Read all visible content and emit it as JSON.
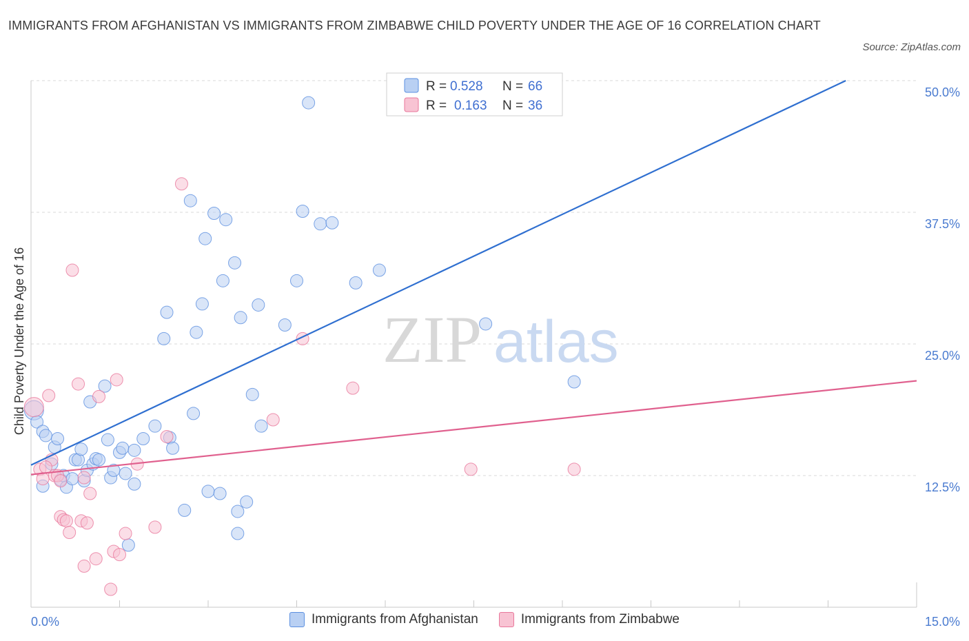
{
  "title": "IMMIGRANTS FROM AFGHANISTAN VS IMMIGRANTS FROM ZIMBABWE CHILD POVERTY UNDER THE AGE OF 16 CORRELATION CHART",
  "source": "Source: ZipAtlas.com",
  "watermark": {
    "zip": "ZIP",
    "atlas": "atlas"
  },
  "chart_data": {
    "type": "scatter",
    "xlabel": "",
    "ylabel": "Child Poverty Under the Age of 16",
    "xlim": [
      0,
      15
    ],
    "ylim": [
      0,
      50
    ],
    "x_tick_labels": [
      "0.0%",
      "15.0%"
    ],
    "y_ticks": [
      12.5,
      25.0,
      37.5,
      50.0
    ],
    "y_tick_labels": [
      "12.5%",
      "25.0%",
      "37.5%",
      "50.0%"
    ],
    "grid": "horizontal dashed",
    "legend_placement": "top-center",
    "series": [
      {
        "name": "Immigrants from Afghanistan",
        "color": "#5b8fe0",
        "fill": "#b9d0f3",
        "R": "0.528",
        "N": "66",
        "trend": {
          "x": [
            0,
            13.8
          ],
          "y": [
            13.5,
            50.0
          ]
        },
        "points": [
          [
            0.05,
            18.7
          ],
          [
            0.1,
            17.6
          ],
          [
            0.2,
            16.7
          ],
          [
            0.25,
            16.3
          ],
          [
            0.35,
            13.6
          ],
          [
            0.4,
            15.2
          ],
          [
            0.45,
            16.0
          ],
          [
            0.5,
            12.1
          ],
          [
            0.2,
            11.5
          ],
          [
            0.55,
            12.5
          ],
          [
            0.6,
            11.4
          ],
          [
            0.7,
            12.2
          ],
          [
            0.75,
            14.0
          ],
          [
            0.8,
            14.0
          ],
          [
            0.85,
            15.0
          ],
          [
            0.9,
            12.0
          ],
          [
            0.95,
            13.0
          ],
          [
            1.0,
            19.5
          ],
          [
            1.05,
            13.6
          ],
          [
            1.1,
            14.1
          ],
          [
            1.15,
            14.0
          ],
          [
            1.25,
            21.0
          ],
          [
            1.3,
            15.9
          ],
          [
            1.35,
            12.3
          ],
          [
            1.4,
            13.0
          ],
          [
            1.5,
            14.7
          ],
          [
            1.55,
            15.1
          ],
          [
            1.6,
            12.7
          ],
          [
            1.65,
            5.9
          ],
          [
            1.75,
            14.9
          ],
          [
            1.75,
            11.7
          ],
          [
            1.9,
            16.0
          ],
          [
            2.1,
            17.2
          ],
          [
            2.25,
            25.5
          ],
          [
            2.3,
            28.0
          ],
          [
            2.35,
            16.1
          ],
          [
            2.4,
            15.1
          ],
          [
            2.6,
            9.2
          ],
          [
            2.7,
            38.6
          ],
          [
            2.75,
            18.4
          ],
          [
            2.8,
            26.1
          ],
          [
            2.9,
            28.8
          ],
          [
            2.95,
            35.0
          ],
          [
            3.0,
            11.0
          ],
          [
            3.1,
            37.4
          ],
          [
            3.2,
            10.8
          ],
          [
            3.25,
            31.0
          ],
          [
            3.3,
            36.8
          ],
          [
            3.45,
            32.7
          ],
          [
            3.5,
            9.1
          ],
          [
            3.5,
            7.0
          ],
          [
            3.55,
            27.5
          ],
          [
            3.65,
            10.0
          ],
          [
            3.75,
            20.2
          ],
          [
            3.85,
            28.7
          ],
          [
            3.9,
            17.2
          ],
          [
            4.3,
            26.8
          ],
          [
            4.5,
            31.0
          ],
          [
            4.6,
            37.6
          ],
          [
            4.7,
            47.9
          ],
          [
            4.9,
            36.4
          ],
          [
            5.1,
            36.5
          ],
          [
            5.5,
            30.8
          ],
          [
            5.9,
            32.0
          ],
          [
            7.7,
            26.9
          ],
          [
            9.2,
            21.4
          ]
        ]
      },
      {
        "name": "Immigrants from Zimbabwe",
        "color": "#e8779b",
        "fill": "#f8c3d3",
        "R": "0.163",
        "N": "36",
        "trend": {
          "x": [
            0,
            15
          ],
          "y": [
            12.6,
            21.5
          ]
        },
        "points": [
          [
            0.05,
            19.0
          ],
          [
            0.15,
            13.1
          ],
          [
            0.2,
            12.2
          ],
          [
            0.3,
            20.1
          ],
          [
            0.35,
            14.0
          ],
          [
            0.4,
            12.5
          ],
          [
            0.45,
            12.5
          ],
          [
            0.5,
            12.0
          ],
          [
            0.5,
            8.6
          ],
          [
            0.55,
            8.3
          ],
          [
            0.6,
            8.2
          ],
          [
            0.65,
            7.1
          ],
          [
            0.7,
            32.0
          ],
          [
            0.8,
            21.2
          ],
          [
            0.85,
            8.2
          ],
          [
            0.9,
            12.3
          ],
          [
            0.9,
            3.9
          ],
          [
            0.95,
            8.0
          ],
          [
            1.0,
            10.8
          ],
          [
            1.1,
            4.6
          ],
          [
            1.15,
            20.0
          ],
          [
            1.35,
            1.7
          ],
          [
            1.4,
            5.3
          ],
          [
            1.45,
            21.6
          ],
          [
            1.5,
            5.0
          ],
          [
            1.6,
            7.0
          ],
          [
            1.8,
            13.6
          ],
          [
            2.1,
            7.6
          ],
          [
            2.3,
            16.2
          ],
          [
            2.55,
            40.2
          ],
          [
            4.1,
            17.8
          ],
          [
            4.6,
            25.5
          ],
          [
            5.45,
            20.8
          ],
          [
            7.45,
            13.1
          ],
          [
            9.2,
            13.1
          ],
          [
            0.25,
            13.3
          ]
        ]
      }
    ]
  }
}
